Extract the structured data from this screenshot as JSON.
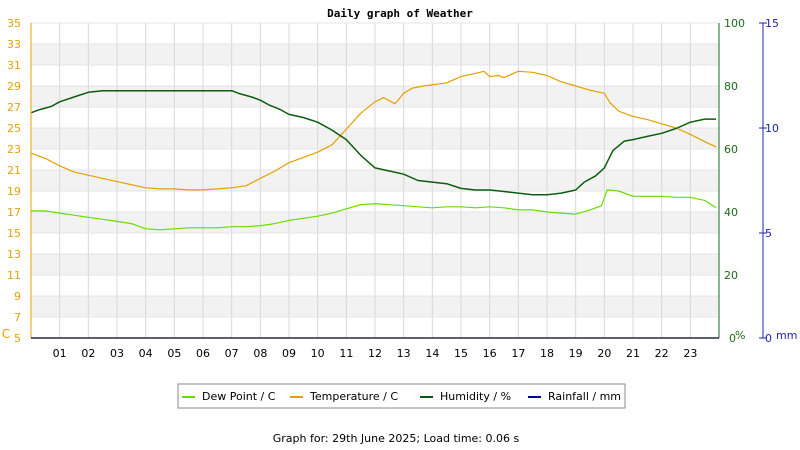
{
  "chart_data": {
    "type": "line",
    "title": "Daily graph of Weather",
    "footer": "Graph for: 29th June 2025; Load time: 0.06 s",
    "x_ticks": [
      "01",
      "02",
      "03",
      "04",
      "05",
      "06",
      "07",
      "08",
      "09",
      "10",
      "11",
      "12",
      "13",
      "14",
      "15",
      "16",
      "17",
      "18",
      "19",
      "20",
      "21",
      "22",
      "23"
    ],
    "x_range": [
      0,
      24
    ],
    "temperature_axis": {
      "unit": "C",
      "range": [
        5,
        35
      ],
      "ticks": [
        "5",
        "7",
        "9",
        "11",
        "13",
        "15",
        "17",
        "19",
        "21",
        "23",
        "25",
        "27",
        "29",
        "31",
        "33",
        "35"
      ],
      "color": "#e6a200"
    },
    "humidity_axis": {
      "unit": "%",
      "range": [
        0,
        100
      ],
      "ticks": [
        "0",
        "20",
        "40",
        "60",
        "80",
        "100"
      ],
      "color": "#1a6b1a"
    },
    "rainfall_axis": {
      "unit": "mm",
      "range": [
        0,
        15
      ],
      "ticks": [
        "0",
        "5",
        "10",
        "15"
      ],
      "color": "#2222aa"
    },
    "grid": true,
    "legend_position": "bottom",
    "series": [
      {
        "name": "Dew Point / C",
        "axis": "temperature",
        "color": "#66dd00",
        "x": [
          0,
          0.5,
          1,
          1.5,
          2,
          2.5,
          3,
          3.5,
          4,
          4.5,
          5,
          5.5,
          6,
          6.5,
          7,
          7.5,
          8,
          8.5,
          9,
          9.5,
          10,
          10.5,
          11,
          11.5,
          12,
          12.5,
          13,
          13.5,
          14,
          14.5,
          15,
          15.5,
          16,
          16.5,
          17,
          17.5,
          18,
          18.5,
          19,
          19.5,
          19.9,
          20.1,
          20.5,
          21,
          21.5,
          22,
          22.5,
          23,
          23.5,
          23.9
        ],
        "values": [
          17.1,
          17.1,
          16.9,
          16.7,
          16.5,
          16.3,
          16.1,
          15.9,
          15.4,
          15.3,
          15.4,
          15.5,
          15.5,
          15.5,
          15.6,
          15.6,
          15.7,
          15.9,
          16.2,
          16.4,
          16.6,
          16.9,
          17.3,
          17.7,
          17.8,
          17.7,
          17.6,
          17.5,
          17.4,
          17.5,
          17.5,
          17.4,
          17.5,
          17.4,
          17.2,
          17.2,
          17.0,
          16.9,
          16.8,
          17.2,
          17.6,
          19.1,
          19.0,
          18.5,
          18.5,
          18.5,
          18.4,
          18.4,
          18.1,
          17.4
        ]
      },
      {
        "name": "Temperature / C",
        "axis": "temperature",
        "color": "#e69f00",
        "x": [
          0,
          0.5,
          1,
          1.5,
          2,
          2.5,
          3,
          3.5,
          4,
          4.5,
          5,
          5.5,
          6,
          6.5,
          7,
          7.5,
          8,
          8.5,
          9,
          9.5,
          10,
          10.5,
          11,
          11.5,
          12,
          12.3,
          12.7,
          13,
          13.3,
          13.7,
          14,
          14.5,
          15,
          15.5,
          15.8,
          16,
          16.3,
          16.5,
          17,
          17.5,
          18,
          18.5,
          19,
          19.5,
          20,
          20.2,
          20.5,
          21,
          21.5,
          22,
          22.5,
          23,
          23.5,
          23.9
        ],
        "values": [
          22.6,
          22.1,
          21.4,
          20.8,
          20.5,
          20.2,
          19.9,
          19.6,
          19.3,
          19.2,
          19.2,
          19.1,
          19.1,
          19.2,
          19.3,
          19.5,
          20.2,
          20.9,
          21.7,
          22.2,
          22.7,
          23.4,
          24.9,
          26.4,
          27.5,
          27.9,
          27.3,
          28.3,
          28.8,
          29.0,
          29.1,
          29.3,
          29.9,
          30.2,
          30.4,
          29.9,
          30.0,
          29.8,
          30.4,
          30.3,
          30.0,
          29.4,
          29.0,
          28.6,
          28.3,
          27.4,
          26.6,
          26.1,
          25.8,
          25.4,
          25.0,
          24.4,
          23.7,
          23.2
        ]
      },
      {
        "name": "Humidity / %",
        "axis": "humidity",
        "color": "#0d5c0d",
        "x": [
          0,
          0.3,
          0.7,
          1,
          1.5,
          2,
          2.5,
          3,
          3.5,
          4,
          4.5,
          5,
          5.5,
          6,
          6.5,
          7,
          7.3,
          7.7,
          8,
          8.3,
          8.7,
          9,
          9.5,
          10,
          10.5,
          11,
          11.5,
          12,
          12.5,
          13,
          13.5,
          14,
          14.5,
          15,
          15.5,
          16,
          16.5,
          17,
          17.5,
          18,
          18.5,
          19,
          19.3,
          19.7,
          20,
          20.3,
          20.7,
          21,
          21.5,
          22,
          22.5,
          23,
          23.5,
          23.9
        ],
        "values": [
          71.5,
          72.5,
          73.5,
          75,
          76.5,
          78,
          78.5,
          78.5,
          78.5,
          78.5,
          78.5,
          78.5,
          78.5,
          78.5,
          78.5,
          78.5,
          77.5,
          76.5,
          75.5,
          74,
          72.5,
          71,
          70,
          68.5,
          66,
          63,
          58,
          54,
          53,
          52,
          50,
          49.5,
          49,
          47.5,
          47,
          47,
          46.5,
          46,
          45.5,
          45.5,
          46,
          47,
          49.5,
          51.5,
          54,
          59.5,
          62.5,
          63,
          64,
          65,
          66.5,
          68.5,
          69.5,
          69.5
        ]
      },
      {
        "name": "Rainfall / mm",
        "axis": "rainfall",
        "color": "#0000aa",
        "x": [
          0,
          24
        ],
        "values": [
          0,
          0
        ]
      }
    ]
  }
}
